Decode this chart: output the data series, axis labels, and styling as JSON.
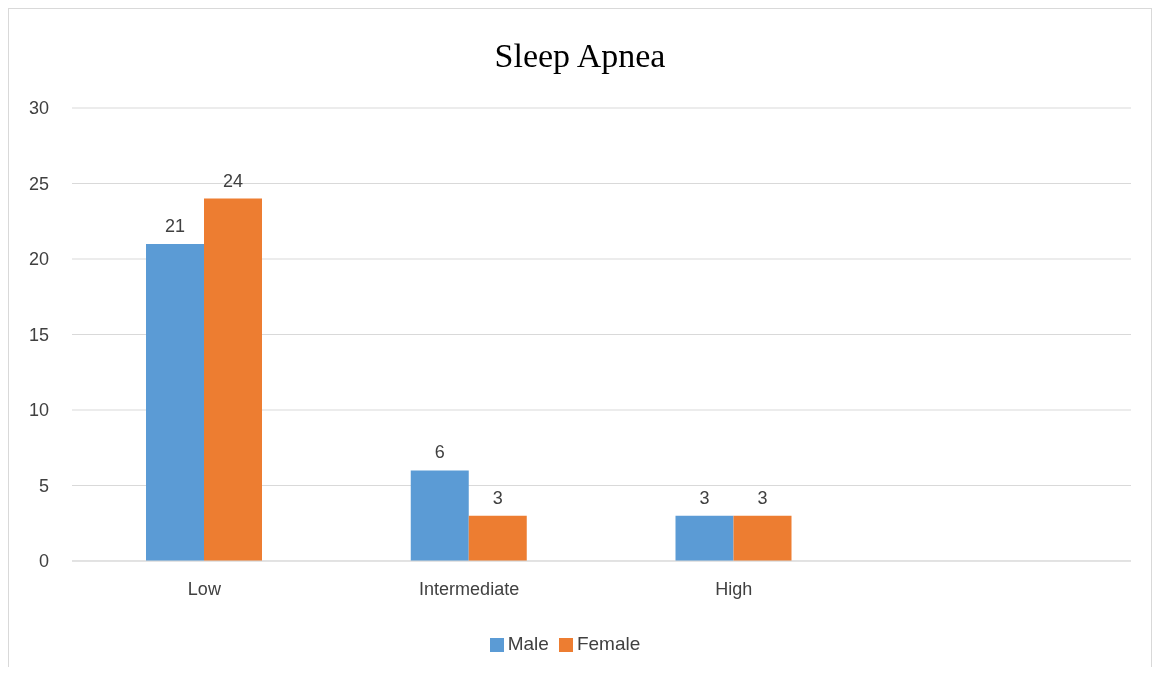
{
  "chart_data": {
    "type": "bar",
    "title": "Sleep Apnea",
    "categories": [
      "Low",
      "Intermediate",
      "High",
      null
    ],
    "series": [
      {
        "name": "Male",
        "color": "#5b9bd5",
        "values": [
          21,
          6,
          3,
          null
        ]
      },
      {
        "name": "Female",
        "color": "#ed7d31",
        "values": [
          24,
          3,
          3,
          null
        ]
      }
    ],
    "ylim": [
      0,
      30
    ],
    "yticks": [
      0,
      5,
      10,
      15,
      20,
      25,
      30
    ],
    "grid": "y",
    "legend": "bottom",
    "data_labels": true
  }
}
